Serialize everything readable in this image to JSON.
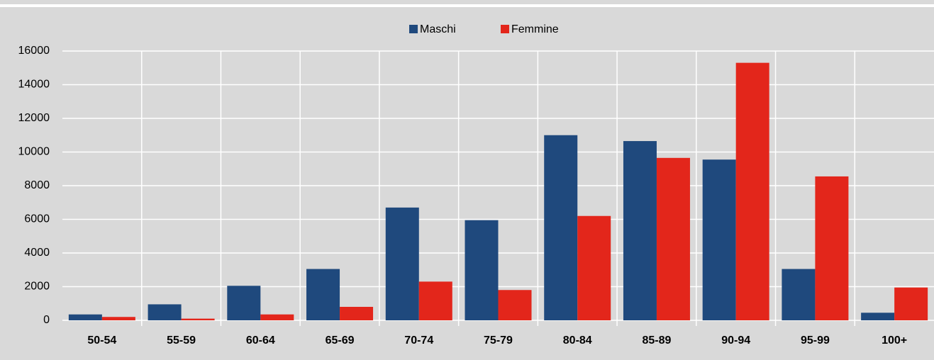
{
  "chart_data": {
    "type": "bar",
    "categories": [
      "50-54",
      "55-59",
      "60-64",
      "65-69",
      "70-74",
      "75-79",
      "80-84",
      "85-89",
      "90-94",
      "95-99",
      "100+"
    ],
    "series": [
      {
        "name": "Maschi",
        "color": "#1f497d",
        "values": [
          350,
          950,
          2050,
          3050,
          6700,
          5950,
          11000,
          10650,
          9550,
          3050,
          450
        ]
      },
      {
        "name": "Femmine",
        "color": "#e3261b",
        "values": [
          200,
          100,
          350,
          800,
          2300,
          1800,
          6200,
          9650,
          15300,
          8550,
          1950
        ]
      }
    ],
    "ylim": [
      0,
      16000
    ],
    "yticks": [
      0,
      2000,
      4000,
      6000,
      8000,
      10000,
      12000,
      14000,
      16000
    ],
    "grid": true,
    "legend": "top"
  }
}
